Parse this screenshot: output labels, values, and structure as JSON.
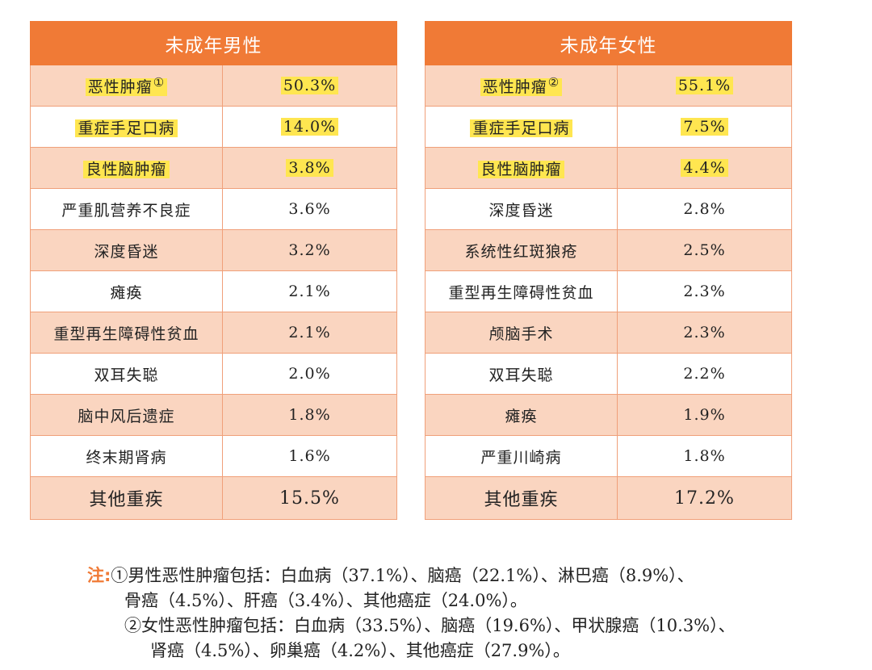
{
  "male": {
    "header": "未成年男性",
    "rows": [
      {
        "name": "恶性肿瘤",
        "sup": "①",
        "pct": "50.3%",
        "highlight": true
      },
      {
        "name": "重症手足口病",
        "pct": "14.0%",
        "highlight": true
      },
      {
        "name": "良性脑肿瘤",
        "pct": "3.8%",
        "highlight": true
      },
      {
        "name": "严重肌营养不良症",
        "pct": "3.6%"
      },
      {
        "name": "深度昏迷",
        "pct": "3.2%"
      },
      {
        "name": "瘫痪",
        "pct": "2.1%"
      },
      {
        "name": "重型再生障碍性贫血",
        "pct": "2.1%"
      },
      {
        "name": "双耳失聪",
        "pct": "2.0%"
      },
      {
        "name": "脑中风后遗症",
        "pct": "1.8%"
      },
      {
        "name": "终末期肾病",
        "pct": "1.6%"
      },
      {
        "name": "其他重疾",
        "pct": "15.5%"
      }
    ]
  },
  "female": {
    "header": "未成年女性",
    "rows": [
      {
        "name": "恶性肿瘤",
        "sup": "②",
        "pct": "55.1%",
        "highlight": true
      },
      {
        "name": "重症手足口病",
        "pct": "7.5%",
        "highlight": true
      },
      {
        "name": "良性脑肿瘤",
        "pct": "4.4%",
        "highlight": true
      },
      {
        "name": "深度昏迷",
        "pct": "2.8%"
      },
      {
        "name": "系统性红斑狼疮",
        "pct": "2.5%"
      },
      {
        "name": "重型再生障碍性贫血",
        "pct": "2.3%"
      },
      {
        "name": "颅脑手术",
        "pct": "2.3%"
      },
      {
        "name": "双耳失聪",
        "pct": "2.2%"
      },
      {
        "name": "瘫痪",
        "pct": "1.9%"
      },
      {
        "name": "严重川崎病",
        "pct": "1.8%"
      },
      {
        "name": "其他重疾",
        "pct": "17.2%"
      }
    ]
  },
  "notes": {
    "label": "注:",
    "line1": "①男性恶性肿瘤包括：白血病（37.1%）、脑癌（22.1%）、淋巴癌（8.9%）、",
    "line2": "骨癌（4.5%）、肝癌（3.4%）、其他癌症（24.0%）。",
    "line3": "②女性恶性肿瘤包括：白血病（33.5%）、脑癌（19.6%）、甲状腺癌（10.3%）、",
    "line4": "肾癌（4.5%）、卵巢癌（4.2%）、其他癌症（27.9%）。"
  },
  "colors": {
    "header_orange": "#f07a36",
    "row_tint": "#fad5c0",
    "highlight_yellow": "#ffe650"
  }
}
